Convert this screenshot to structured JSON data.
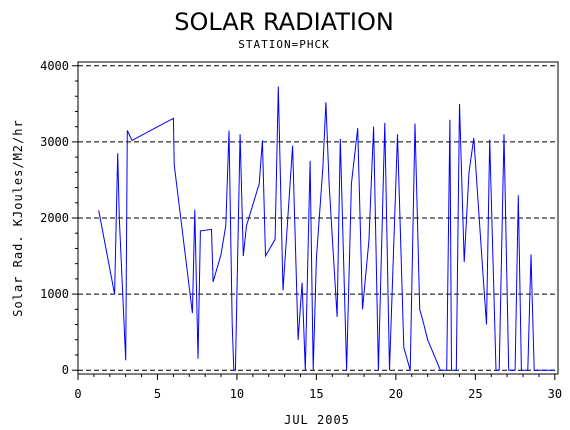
{
  "chart_data": {
    "type": "line",
    "title": "SOLAR RADIATION",
    "subtitle": "STATION=PHCK",
    "xlabel": "JUL 2005",
    "ylabel": "Solar Rad. KJoules/M2/hr",
    "xlim": [
      0,
      30.2
    ],
    "ylim": [
      -50,
      4050
    ],
    "x_ticks": [
      0,
      5,
      10,
      15,
      20,
      25,
      30
    ],
    "y_ticks": [
      0,
      1000,
      2000,
      3000,
      4000
    ],
    "y_tick_labels": [
      "0",
      "1000",
      "2000",
      "3000",
      "4000"
    ],
    "grid": "horizontal-dashed",
    "colors": {
      "line": "#0000ff",
      "grid": "#000000",
      "axis": "#000000"
    },
    "series": [
      {
        "x": [
          1.3,
          2.3,
          2.5,
          2.6,
          3.0,
          3.1,
          3.4,
          6.0,
          6.05,
          7.2,
          7.35,
          7.55,
          7.7,
          8.4,
          8.5,
          9.0,
          9.3,
          9.5,
          9.7,
          9.8,
          9.9,
          10.2,
          10.4,
          10.6,
          11.4,
          11.6,
          11.8,
          12.4,
          12.6,
          12.9,
          13.5,
          13.85,
          14.1,
          14.3,
          14.6,
          14.8,
          15.0,
          15.4,
          15.6,
          15.8,
          16.3,
          16.5,
          16.9,
          17.2,
          17.6,
          17.9,
          18.3,
          18.6,
          18.9,
          19.3,
          19.6,
          20.1,
          20.5,
          20.9,
          21.2,
          21.5,
          21.7,
          22.0,
          22.8,
          23.2,
          23.4,
          23.5,
          23.8,
          24.0,
          24.3,
          24.6,
          24.9,
          25.5,
          25.7,
          25.9,
          26.3,
          26.5,
          26.8,
          27.1,
          27.5,
          27.7,
          27.9,
          28.3,
          28.5,
          28.7,
          28.9,
          29.2,
          29.5,
          29.7,
          30.0
        ],
        "y": [
          2100,
          1000,
          2850,
          2000,
          130,
          3150,
          3020,
          3310,
          2700,
          750,
          2110,
          150,
          1830,
          1850,
          1160,
          1520,
          1900,
          3150,
          600,
          0,
          0,
          3100,
          1500,
          1900,
          2450,
          3020,
          1500,
          1720,
          3730,
          1050,
          2950,
          400,
          1150,
          0,
          2750,
          0,
          1470,
          2650,
          3520,
          2450,
          700,
          3040,
          0,
          2450,
          3180,
          800,
          1700,
          3200,
          0,
          3250,
          0,
          3100,
          300,
          0,
          3240,
          800,
          650,
          400,
          0,
          0,
          3290,
          0,
          0,
          3500,
          1420,
          2600,
          3050,
          1200,
          600,
          3030,
          0,
          0,
          3100,
          0,
          0,
          2300,
          0,
          0,
          1520,
          0,
          0,
          0,
          0,
          0,
          0
        ]
      }
    ]
  }
}
